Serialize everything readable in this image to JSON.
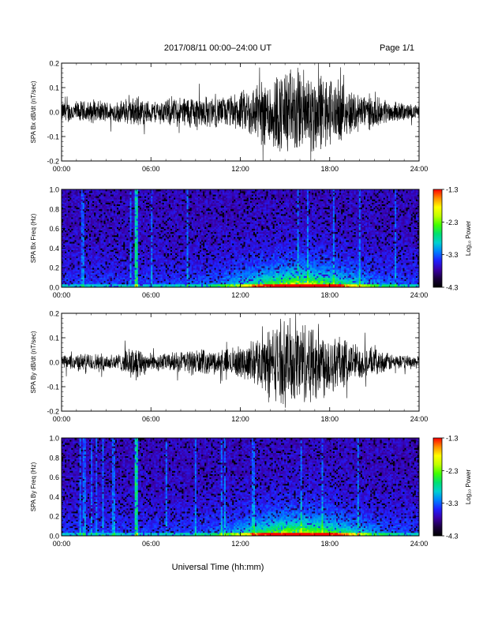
{
  "header": {
    "title": "2017/08/11  00:00–24:00 UT",
    "page": "Page 1/1"
  },
  "footer": {
    "xlabel": "Universal Time (hh:mm)"
  },
  "colorbar": {
    "label": "Log₁₀ Power",
    "ticks": [
      "-1.3",
      "-2.3",
      "-3.3",
      "-4.3"
    ],
    "range": [
      -4.3,
      -1.3
    ],
    "colors": [
      "#000000",
      "#1a0040",
      "#3a00a8",
      "#2020ff",
      "#0080ff",
      "#00d0d0",
      "#00e070",
      "#40ff00",
      "#c0ff00",
      "#ffff00",
      "#ff9000",
      "#ff0000"
    ]
  },
  "time_ticks": [
    "00:00",
    "06:00",
    "12:00",
    "18:00",
    "24:00"
  ],
  "chart_data": [
    {
      "type": "line",
      "ylabel": "SPA Bx dB/dt (nT/sec)",
      "xlim": [
        0,
        24
      ],
      "ylim": [
        -0.2,
        0.2
      ],
      "yticks": [
        "0.2",
        "0.1",
        "0.0",
        "-0.1",
        "-0.2"
      ],
      "x_hours": [
        0,
        1,
        2,
        3,
        4,
        5,
        6,
        7,
        8,
        9,
        10,
        11,
        12,
        13,
        14,
        15,
        16,
        17,
        18,
        19,
        20,
        21,
        22,
        23,
        24
      ],
      "amplitude": [
        0.05,
        0.05,
        0.05,
        0.05,
        0.05,
        0.07,
        0.05,
        0.06,
        0.07,
        0.08,
        0.07,
        0.07,
        0.09,
        0.13,
        0.17,
        0.2,
        0.2,
        0.19,
        0.16,
        0.12,
        0.09,
        0.07,
        0.05,
        0.04,
        0.03
      ]
    },
    {
      "type": "heatmap",
      "ylabel": "SPA Bx Freq (Hz)",
      "xlim": [
        0,
        24
      ],
      "ylim": [
        0.0,
        1.0
      ],
      "yticks": [
        "1.0",
        "0.8",
        "0.6",
        "0.4",
        "0.2",
        "0.0"
      ]
    },
    {
      "type": "line",
      "ylabel": "SPA By dB/dt (nT/sec)",
      "xlim": [
        0,
        24
      ],
      "ylim": [
        -0.2,
        0.2
      ],
      "yticks": [
        "0.2",
        "0.1",
        "0.0",
        "-0.1",
        "-0.2"
      ],
      "x_hours": [
        0,
        1,
        2,
        3,
        4,
        5,
        6,
        7,
        8,
        9,
        10,
        11,
        12,
        13,
        14,
        15,
        16,
        17,
        18,
        19,
        20,
        21,
        22,
        23,
        24
      ],
      "amplitude": [
        0.03,
        0.04,
        0.04,
        0.04,
        0.04,
        0.08,
        0.04,
        0.04,
        0.05,
        0.06,
        0.05,
        0.06,
        0.07,
        0.1,
        0.16,
        0.19,
        0.2,
        0.18,
        0.15,
        0.11,
        0.08,
        0.06,
        0.04,
        0.03,
        0.03
      ]
    },
    {
      "type": "heatmap",
      "ylabel": "SPA By Freq (Hz)",
      "xlim": [
        0,
        24
      ],
      "ylim": [
        0.0,
        1.0
      ],
      "yticks": [
        "1.0",
        "0.8",
        "0.6",
        "0.4",
        "0.2",
        "0.0"
      ]
    }
  ]
}
